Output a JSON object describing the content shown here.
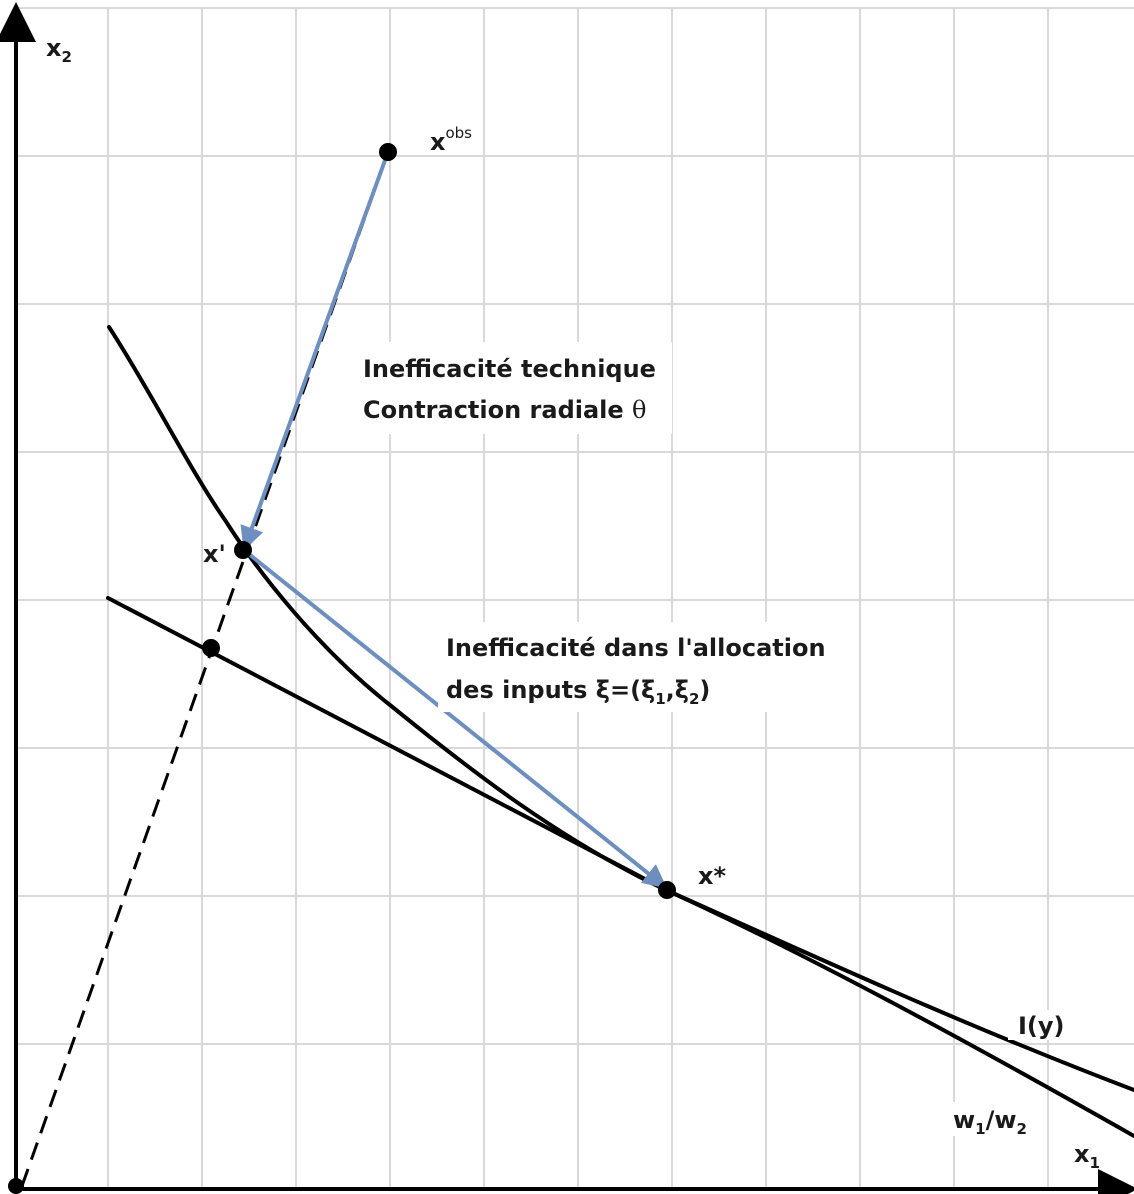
{
  "labels": {
    "x2_axis": "x",
    "x2_axis_sub": "2",
    "x1_axis": "x",
    "x1_axis_sub": "1",
    "xobs_base": "x",
    "xobs_sup": "obs",
    "xprime": "x'",
    "xstar": "x*",
    "tech_line1": "Inefficacité technique",
    "tech_line2_prefix": "Contraction radiale ",
    "tech_line2_symbol": "θ",
    "alloc_line1": "Inefficacité dans l'allocation",
    "alloc_line2_prefix": "des inputs ξ=(ξ",
    "alloc_sub1": "1",
    "alloc_mid": ",ξ",
    "alloc_sub2": "2",
    "alloc_end": ")",
    "isoquant": "I(y)",
    "price_w1": "w",
    "price_sub1": "1",
    "price_slash": "/w",
    "price_sub2": "2"
  },
  "colors": {
    "arrow": "#6d8ebf",
    "curve": "#000000",
    "grid": "#d9d9d9"
  }
}
